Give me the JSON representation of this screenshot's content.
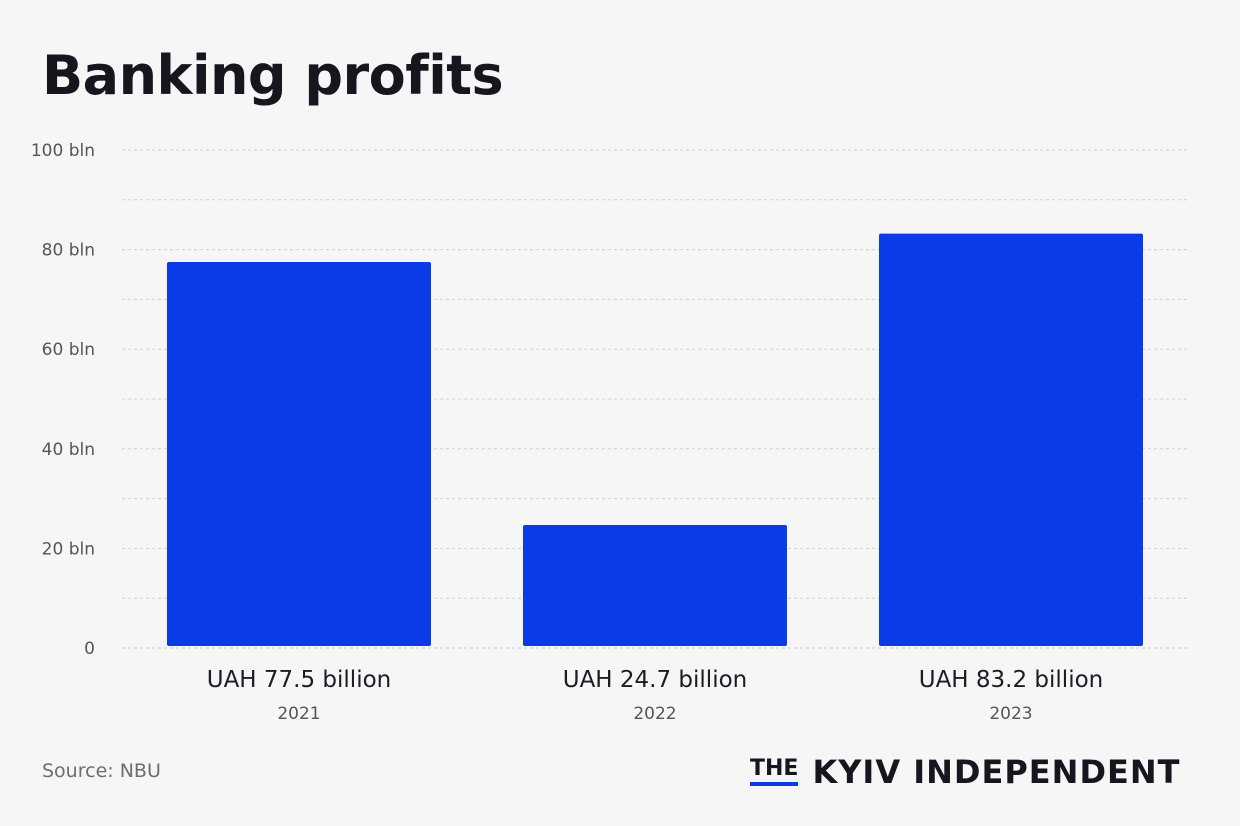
{
  "title": "Banking profits",
  "source": "Source: NBU",
  "logo": {
    "the": "THE",
    "name": "KYIV INDEPENDENT"
  },
  "colors": {
    "bar": "#0a3be6",
    "grid": "#cfcfcf",
    "background": "#f6f6f6"
  },
  "chart_data": {
    "type": "bar",
    "categories": [
      "2021",
      "2022",
      "2023"
    ],
    "values": [
      77.5,
      24.7,
      83.2
    ],
    "data_labels": [
      "UAH 77.5 billion",
      "UAH 24.7 billion",
      "UAH 83.2 billion"
    ],
    "ylim": [
      0,
      100
    ],
    "yticks": [
      0,
      20,
      40,
      60,
      80,
      100
    ],
    "ytick_labels": [
      "0",
      "20 bln",
      "40 bln",
      "60 bln",
      "80 bln",
      "100 bln"
    ],
    "minor_gridlines": [
      10,
      30,
      50,
      70,
      90
    ],
    "grid": true,
    "grid_style": "dashed",
    "xlabel": "",
    "ylabel": "",
    "legend": "none"
  }
}
